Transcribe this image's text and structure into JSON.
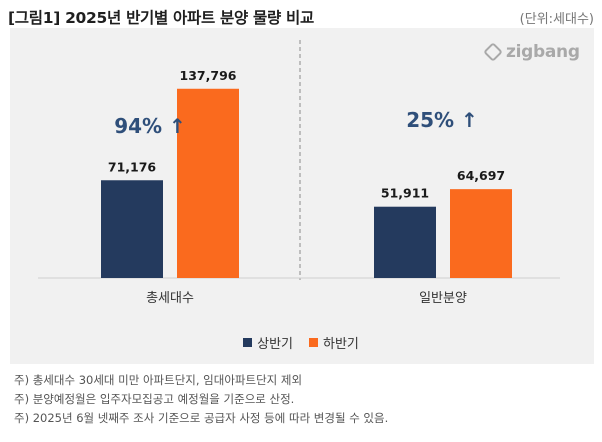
{
  "header": {
    "title": "[그림1] 2025년 반기별 아파트 분양 물량 비교",
    "unit": "(단위:세대수)"
  },
  "logo": {
    "text": "zigbang"
  },
  "colors": {
    "first_half": "#243a5e",
    "second_half": "#fa6a1e",
    "growth_text": "#2f4f7a",
    "background": "#f1f1f1",
    "divider": "#8a8a8a"
  },
  "chart_data": {
    "type": "bar",
    "categories": [
      "총세대수",
      "일반분양"
    ],
    "series": [
      {
        "name": "상반기",
        "values": [
          71176,
          51911
        ]
      },
      {
        "name": "하반기",
        "values": [
          137796,
          64697
        ]
      }
    ],
    "data_labels": [
      [
        "71,176",
        "51,911"
      ],
      [
        "137,796",
        "64,697"
      ]
    ],
    "annotations": [
      "94% ↑",
      "25% ↑"
    ],
    "ylim": [
      0,
      150000
    ],
    "grid": false,
    "legend_position": "bottom-center",
    "title": "",
    "xlabel": "",
    "ylabel": ""
  },
  "footnotes": [
    "주) 총세대수 30세대 미만 아파트단지, 임대아파트단지 제외",
    "주) 분양예정월은 입주자모집공고 예정월을 기준으로 산정.",
    "주) 2025년 6월 넷째주 조사 기준으로 공급자 사정 등에 따라 변경될 수 있음."
  ]
}
